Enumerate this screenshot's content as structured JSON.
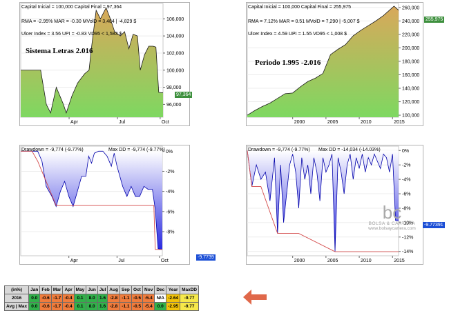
{
  "top_left": {
    "line1": "Capital Inicial = 100,000  Capital Final = 97,364",
    "line2": "RMA = -2.95%   MAR = -0.30   MVolD = 3,484 | -4,829 $",
    "line3": "Ulcer Index = 3.56   UPI = -0.83   VD95 < 1,583 $",
    "big_label": "Sistema Letras 2.016",
    "last_value_tag": "97,364",
    "colors": {
      "fill_top": "#d9a85a",
      "fill_bottom": "#7ed861",
      "line": "#1a1a1a",
      "tag": "#3c8f3c"
    }
  },
  "top_right": {
    "line1": "Capital Inicial = 100,000  Capital Final = 255,975",
    "line2": "RMA = 7.12%   MAR = 0.51   MVolD = 7,290 | -5,007 $",
    "line3": "Ulcer Index = 4.59   UPI = 1.55   VD95 < 1,008 $",
    "big_label": "Periodo 1.995 -2.016",
    "last_value_tag": "255,975",
    "colors": {
      "fill_top": "#d9a85a",
      "fill_bottom": "#7ed861",
      "line": "#1a1a1a",
      "tag": "#3c8f3c"
    }
  },
  "bottom_left": {
    "line1": "Drawdown = -9,774 (-9.77%)",
    "line2": "Max DD = -9,774 (-9.77%)",
    "last_value_tag": "-9.7739",
    "colors": {
      "fill": "#2a2ae0",
      "line": "#0000aa",
      "maxdd": "#d44a4a",
      "tag": "#1c4fd6"
    }
  },
  "bottom_right": {
    "line1": "Drawdown = -9,774 (-9.77%)",
    "line2": "Max DD = -14,034 (-14.03%)",
    "last_value_tag": "-9.77391",
    "colors": {
      "fill": "#2a2ae0",
      "line": "#0000aa",
      "maxdd": "#d44a4a",
      "tag": "#1c4fd6"
    }
  },
  "logo": {
    "mark": "bc",
    "name": "BOLSA & CARTERA",
    "url": "www.bolsaycartera.com"
  },
  "table": {
    "headers": [
      "(in%)",
      "Jan",
      "Feb",
      "Mar",
      "Apr",
      "May",
      "Jun",
      "Jul",
      "Aug",
      "Sep",
      "Oct",
      "Nov",
      "Dec",
      "Year",
      "MaxDD"
    ],
    "rows": [
      {
        "label": "2016",
        "values": [
          "0.0",
          "-0.6",
          "-1.7",
          "-0.4",
          "0.1",
          "8.0",
          "1.6",
          "-2.8",
          "-1.1",
          "-0.5",
          "-5.4",
          "N/A",
          "-2.64",
          "-9.77"
        ]
      },
      {
        "label": "Avg | Max",
        "values": [
          "0.0",
          "-0.6",
          "-1.7",
          "-0.4",
          "0.1",
          "8.0",
          "1.6",
          "-2.8",
          "-1.1",
          "-0.5",
          "-5.4",
          "0.0",
          "-2.95",
          "-9.77"
        ]
      }
    ],
    "colors": {
      "positive": "#31b14a",
      "negative": "#f07c3c",
      "neutral": "#c6e85a",
      "na": "#ffffff",
      "year": "#f2c30a",
      "maxdd": "#f6e94a"
    }
  },
  "arrow_color": "#e0684a",
  "chart_data": [
    {
      "type": "area",
      "title": "Sistema Letras 2.016",
      "x_ticks": [
        "Apr",
        "Jul",
        "Oct"
      ],
      "y_ticks": [
        96000,
        98000,
        100000,
        102000,
        104000,
        106000
      ],
      "ylim": [
        94500,
        107800
      ],
      "x": [
        0,
        5,
        10,
        14,
        16,
        18,
        21,
        25,
        30,
        32,
        36,
        40,
        45,
        48,
        50,
        53,
        56,
        60,
        63,
        66,
        70,
        73,
        76,
        79,
        82,
        84,
        87,
        90,
        93,
        95,
        97,
        100
      ],
      "values": [
        100000,
        100000,
        100000,
        100000,
        98000,
        96000,
        95000,
        98000,
        96000,
        95000,
        97000,
        98500,
        99600,
        100000,
        103000,
        107000,
        106000,
        107300,
        106000,
        104500,
        104000,
        104500,
        102500,
        104200,
        104000,
        100000,
        101800,
        102800,
        102800,
        102700,
        97400,
        97364
      ]
    },
    {
      "type": "area",
      "title": "Periodo 1.995 -2.016",
      "x_ticks": [
        "2000",
        "2005",
        "2010",
        "2015"
      ],
      "y_ticks": [
        100000,
        120000,
        140000,
        160000,
        180000,
        200000,
        220000,
        240000,
        260000
      ],
      "ylim": [
        97000,
        266000
      ],
      "x": [
        0,
        5,
        10,
        15,
        20,
        25,
        30,
        35,
        40,
        45,
        50,
        55,
        60,
        65,
        70,
        75,
        80,
        85,
        90,
        95,
        97,
        100
      ],
      "values": [
        100000,
        107000,
        113000,
        118000,
        125000,
        132000,
        133000,
        142000,
        150000,
        155000,
        162000,
        190000,
        198000,
        205000,
        218000,
        226000,
        233000,
        240000,
        248000,
        258000,
        262000,
        255975
      ]
    },
    {
      "type": "area",
      "series": [
        {
          "name": "Drawdown",
          "x": [
            0,
            4,
            8,
            12,
            15,
            18,
            22,
            25,
            28,
            31,
            34,
            37,
            40,
            43,
            46,
            48,
            50,
            52,
            55,
            58,
            61,
            64,
            66,
            68,
            70,
            72,
            75,
            78,
            81,
            84,
            87,
            90,
            93,
            95,
            97,
            100
          ],
          "values": [
            0,
            0,
            0,
            0,
            -1,
            -3.5,
            -4.5,
            -5.5,
            -4,
            -3,
            -4.5,
            -5.5,
            -4,
            -2.5,
            -2.5,
            -0.5,
            -1.2,
            -0.2,
            0,
            0,
            -0.5,
            -1.5,
            -0.2,
            -1.5,
            -2.5,
            -3.5,
            -4.5,
            -3.5,
            -4.5,
            -4.5,
            -3.5,
            -3.8,
            -3.8,
            -5.8,
            -9.7,
            -9.77
          ]
        },
        {
          "name": "Max DD",
          "x": [
            0,
            8,
            12,
            25,
            94,
            95,
            100
          ],
          "values": [
            0,
            0,
            -1,
            -5.4,
            -5.4,
            -9.77,
            -9.77
          ]
        }
      ],
      "x_ticks": [
        "Apr",
        "Jul",
        "Oct"
      ],
      "y_ticks": [
        0,
        -2,
        -4,
        -6,
        -8
      ],
      "ylim": [
        -10.4,
        0.5
      ]
    },
    {
      "type": "area",
      "series": [
        {
          "name": "Drawdown",
          "x": [
            0,
            3,
            6,
            9,
            12,
            15,
            18,
            20,
            22,
            24,
            26,
            28,
            30,
            32,
            34,
            36,
            38,
            40,
            42,
            44,
            46,
            48,
            50,
            52,
            54,
            56,
            58,
            60,
            62,
            64,
            66,
            68,
            70,
            72,
            74,
            76,
            78,
            80,
            82,
            84,
            86,
            88,
            90,
            92,
            94,
            96,
            98,
            100
          ],
          "values": [
            0,
            -5,
            -2,
            -4,
            -3,
            -7,
            -1,
            -11.5,
            -2,
            -10,
            -6,
            -2,
            -0.5,
            -3,
            -8,
            -1,
            -4,
            -2,
            -6,
            -1,
            -3,
            -7,
            -1,
            -3,
            -2,
            -0.5,
            -14,
            -1,
            -3,
            -6,
            -2,
            -0.5,
            -4,
            -1,
            -2.5,
            -0.5,
            -3,
            -1,
            -2,
            -0.5,
            -1.5,
            -2.5,
            -0.5,
            -1,
            -3,
            -0.5,
            -9.7,
            -9.77
          ]
        },
        {
          "name": "Max DD",
          "x": [
            0,
            3,
            9,
            20,
            34,
            58,
            100
          ],
          "values": [
            0,
            -5,
            -5,
            -11.5,
            -11.5,
            -14.03,
            -14.03
          ]
        }
      ],
      "x_ticks": [
        "2000",
        "2005",
        "2010",
        "2015"
      ],
      "y_ticks": [
        0,
        -2,
        -4,
        -6,
        -8,
        -10,
        -12,
        -14
      ],
      "ylim": [
        -14.6,
        0.6
      ]
    }
  ]
}
